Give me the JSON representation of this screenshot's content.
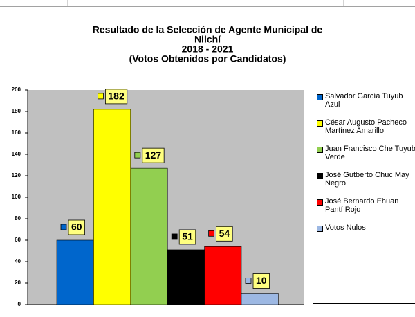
{
  "chart_data": {
    "type": "bar",
    "title": [
      "Resultado de la Selección de Agente Municipal de",
      "Nilchí",
      "2018 - 2021",
      "(Votos Obtenidos por Candidatos)"
    ],
    "series": [
      {
        "name": "Salvador García Tuyub Azul",
        "color": "#0066cc",
        "values": [
          60
        ]
      },
      {
        "name": "César Augusto Pacheco Martínez Amarillo",
        "color": "#ffff00",
        "values": [
          182
        ]
      },
      {
        "name": "Juan Francisco Che Tuyub Verde",
        "color": "#92cf50",
        "values": [
          127
        ]
      },
      {
        "name": "José Gutberto Chuc May Negro",
        "color": "#000000",
        "values": [
          51
        ]
      },
      {
        "name": "José Bernardo Ehuan Pantí Rojo",
        "color": "#ff0000",
        "values": [
          54
        ]
      },
      {
        "name": "Votos Nulos",
        "color": "#9db8e3",
        "values": [
          10
        ]
      }
    ],
    "ylim": [
      0,
      200
    ],
    "yticks": [
      0,
      20,
      40,
      60,
      80,
      100,
      120,
      140,
      160,
      180,
      200
    ],
    "grid": false,
    "legend": "right"
  }
}
